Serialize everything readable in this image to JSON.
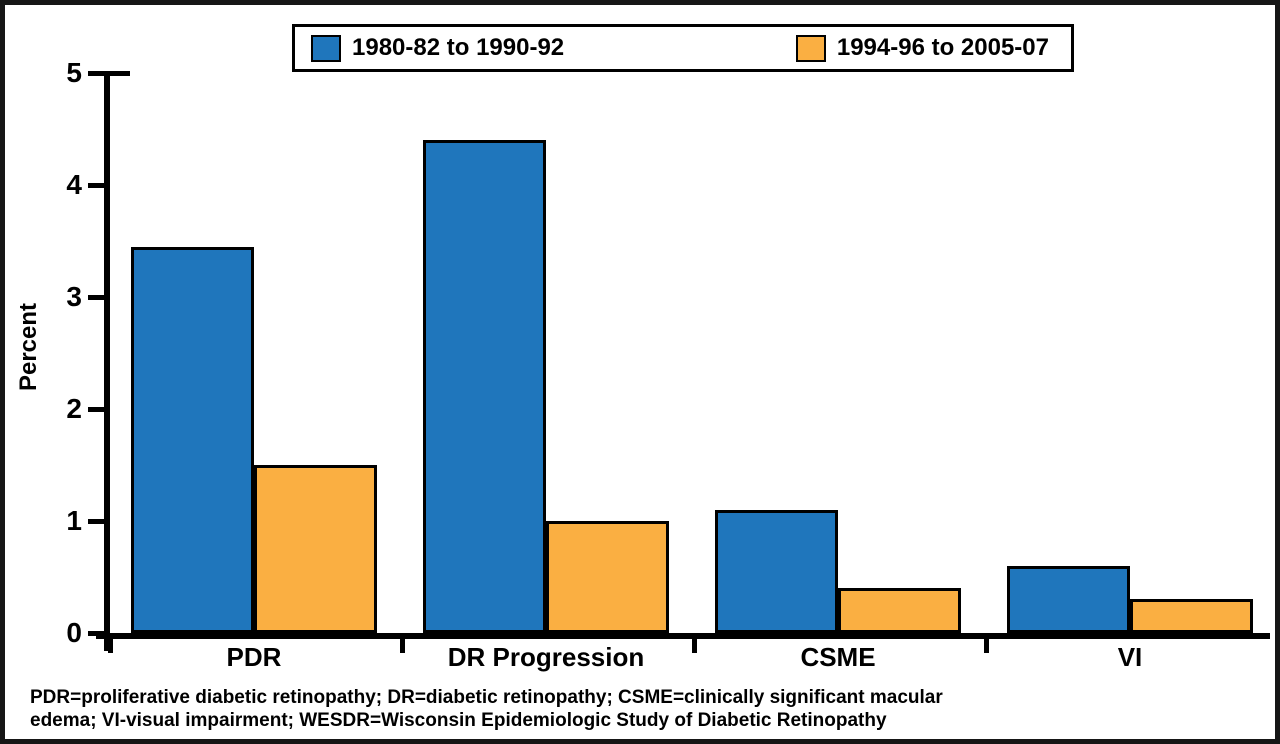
{
  "chart_data": {
    "type": "bar",
    "grouped": true,
    "title": "",
    "categories": [
      "PDR",
      "DR Progression",
      "CSME",
      "VI"
    ],
    "series": [
      {
        "name": "1980-82 to 1990-92",
        "color": "#1F76BC",
        "values": [
          3.45,
          4.4,
          1.1,
          0.6
        ]
      },
      {
        "name": "1994-96 to 2005-07",
        "color": "#FAAF42",
        "values": [
          1.5,
          1.0,
          0.4,
          0.3
        ]
      }
    ],
    "xlabel": "",
    "ylabel": "Percent",
    "ylim": [
      0,
      5
    ],
    "yticks": [
      0,
      1,
      2,
      3,
      4,
      5
    ],
    "grid": false,
    "legend_position": "top-center",
    "bar_border_color": "#000000",
    "axis_color": "#000000",
    "background_color": "#ffffff"
  },
  "footnote": {
    "line1": "PDR=proliferative diabetic retinopathy; DR=diabetic retinopathy; CSME=clinically significant macular",
    "line2": "edema; VI-visual impairment; WESDR=Wisconsin Epidemiologic Study of Diabetic Retinopathy"
  }
}
